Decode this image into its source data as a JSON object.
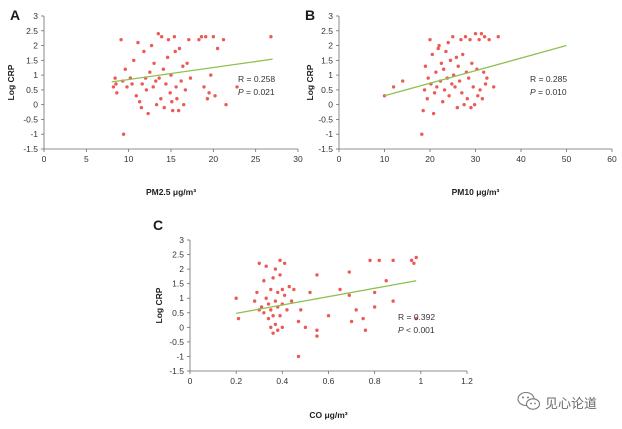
{
  "chart_data": [
    {
      "type": "scatter",
      "panel_label": "A",
      "xlabel": "PM2.5 μg/m³",
      "ylabel": "Log CRP",
      "xlim": [
        0,
        30
      ],
      "ylim": [
        -1.5,
        3
      ],
      "xticks": [
        0,
        5,
        10,
        15,
        20,
        25,
        30
      ],
      "yticks": [
        3,
        2.5,
        2,
        1.5,
        1,
        0.5,
        0,
        -0.5,
        -1,
        -1.5
      ],
      "annotation": {
        "r": "R = 0.258",
        "p": "P = 0.021"
      },
      "trendline": {
        "x": [
          8,
          27
        ],
        "y": [
          0.77,
          1.54
        ],
        "color": "#8ec04e"
      },
      "point_color": "#ec5a55",
      "points": [
        [
          8.2,
          0.6
        ],
        [
          8.4,
          0.9
        ],
        [
          8.5,
          0.7
        ],
        [
          8.6,
          0.4
        ],
        [
          9.1,
          2.2
        ],
        [
          9.3,
          0.8
        ],
        [
          9.4,
          -1.0
        ],
        [
          9.6,
          1.2
        ],
        [
          9.8,
          0.6
        ],
        [
          10.2,
          0.9
        ],
        [
          10.4,
          0.7
        ],
        [
          10.6,
          1.5
        ],
        [
          10.9,
          0.3
        ],
        [
          11.1,
          2.1
        ],
        [
          11.3,
          0.1
        ],
        [
          11.5,
          -0.1
        ],
        [
          11.6,
          0.7
        ],
        [
          11.8,
          1.8
        ],
        [
          12.0,
          0.9
        ],
        [
          12.1,
          0.5
        ],
        [
          12.3,
          -0.3
        ],
        [
          12.5,
          1.1
        ],
        [
          12.7,
          2.0
        ],
        [
          12.9,
          0.6
        ],
        [
          13.0,
          1.4
        ],
        [
          13.2,
          0.8
        ],
        [
          13.3,
          0.0
        ],
        [
          13.5,
          2.4
        ],
        [
          13.6,
          0.9
        ],
        [
          13.8,
          0.2
        ],
        [
          13.9,
          2.3
        ],
        [
          14.1,
          1.2
        ],
        [
          14.2,
          -0.1
        ],
        [
          14.4,
          0.7
        ],
        [
          14.6,
          1.6
        ],
        [
          14.7,
          2.2
        ],
        [
          14.9,
          0.4
        ],
        [
          15.0,
          1.0
        ],
        [
          15.1,
          0.1
        ],
        [
          15.2,
          -0.2
        ],
        [
          15.4,
          2.3
        ],
        [
          15.5,
          1.8
        ],
        [
          15.6,
          0.6
        ],
        [
          15.7,
          0.2
        ],
        [
          15.9,
          -0.2
        ],
        [
          16.0,
          1.9
        ],
        [
          16.2,
          0.8
        ],
        [
          16.4,
          1.3
        ],
        [
          16.5,
          0.0
        ],
        [
          16.7,
          0.5
        ],
        [
          16.9,
          1.4
        ],
        [
          17.1,
          2.2
        ],
        [
          17.3,
          0.9
        ],
        [
          18.3,
          2.2
        ],
        [
          18.6,
          2.3
        ],
        [
          18.9,
          0.6
        ],
        [
          19.1,
          2.3
        ],
        [
          19.3,
          0.2
        ],
        [
          19.5,
          0.4
        ],
        [
          19.7,
          1.0
        ],
        [
          20.0,
          2.3
        ],
        [
          20.2,
          0.3
        ],
        [
          20.5,
          1.9
        ],
        [
          21.2,
          2.2
        ],
        [
          21.5,
          0.0
        ],
        [
          22.8,
          0.6
        ],
        [
          26.8,
          2.3
        ]
      ]
    },
    {
      "type": "scatter",
      "panel_label": "B",
      "xlabel": "PM10 μg/m³",
      "ylabel": "Log CRP",
      "xlim": [
        0,
        60
      ],
      "ylim": [
        -1.5,
        3
      ],
      "xticks": [
        0,
        10,
        20,
        30,
        40,
        50,
        60
      ],
      "yticks": [
        3,
        2.5,
        2,
        1.5,
        1,
        0.5,
        0,
        -0.5,
        -1,
        -1.5
      ],
      "annotation": {
        "r": "R = 0.285",
        "p": "P = 0.010"
      },
      "trendline": {
        "x": [
          10,
          50
        ],
        "y": [
          0.3,
          2.0
        ],
        "color": "#8ec04e"
      },
      "point_color": "#ec5a55",
      "points": [
        [
          10.0,
          0.3
        ],
        [
          12.0,
          0.6
        ],
        [
          14.0,
          0.8
        ],
        [
          18.2,
          -1.0
        ],
        [
          18.5,
          -0.2
        ],
        [
          18.8,
          0.5
        ],
        [
          19.0,
          1.3
        ],
        [
          19.4,
          0.2
        ],
        [
          19.6,
          0.9
        ],
        [
          20.0,
          2.2
        ],
        [
          20.2,
          0.7
        ],
        [
          20.5,
          1.7
        ],
        [
          20.8,
          -0.3
        ],
        [
          21.0,
          0.4
        ],
        [
          21.3,
          1.1
        ],
        [
          21.5,
          0.6
        ],
        [
          21.8,
          1.9
        ],
        [
          22.0,
          2.0
        ],
        [
          22.3,
          0.8
        ],
        [
          22.5,
          1.4
        ],
        [
          22.8,
          0.1
        ],
        [
          23.0,
          1.2
        ],
        [
          23.2,
          0.5
        ],
        [
          23.5,
          1.8
        ],
        [
          23.8,
          0.9
        ],
        [
          24.0,
          2.1
        ],
        [
          24.2,
          0.3
        ],
        [
          24.5,
          1.5
        ],
        [
          24.8,
          0.7
        ],
        [
          25.0,
          2.3
        ],
        [
          25.2,
          1.0
        ],
        [
          25.5,
          0.6
        ],
        [
          25.8,
          1.6
        ],
        [
          26.0,
          -0.1
        ],
        [
          26.2,
          1.3
        ],
        [
          26.5,
          0.8
        ],
        [
          26.8,
          2.2
        ],
        [
          27.0,
          0.4
        ],
        [
          27.2,
          1.7
        ],
        [
          27.5,
          0.0
        ],
        [
          27.8,
          2.3
        ],
        [
          28.0,
          1.1
        ],
        [
          28.2,
          0.2
        ],
        [
          28.5,
          0.9
        ],
        [
          28.8,
          2.2
        ],
        [
          29.0,
          -0.1
        ],
        [
          29.2,
          1.4
        ],
        [
          29.5,
          0.6
        ],
        [
          29.8,
          0.0
        ],
        [
          30.0,
          2.4
        ],
        [
          30.3,
          1.2
        ],
        [
          30.5,
          0.3
        ],
        [
          30.8,
          2.2
        ],
        [
          31.0,
          0.5
        ],
        [
          31.3,
          2.4
        ],
        [
          31.5,
          0.2
        ],
        [
          31.8,
          1.1
        ],
        [
          32.0,
          2.3
        ],
        [
          32.2,
          0.7
        ],
        [
          32.5,
          0.9
        ],
        [
          33.0,
          2.2
        ],
        [
          34.0,
          0.6
        ],
        [
          35.0,
          2.3
        ]
      ]
    },
    {
      "type": "scatter",
      "panel_label": "C",
      "xlabel": "CO μg/m³",
      "ylabel": "Log CRP",
      "xlim": [
        0,
        1.2
      ],
      "ylim": [
        -1.5,
        3
      ],
      "xticks": [
        0,
        0.2,
        0.4,
        0.6,
        0.8,
        1,
        1.2
      ],
      "yticks": [
        3,
        2.5,
        2,
        1.5,
        1,
        0.5,
        0,
        -0.5,
        -1,
        -1.5
      ],
      "annotation": {
        "r": "R = 0.392",
        "p": "P < 0.001"
      },
      "trendline": {
        "x": [
          0.2,
          0.98
        ],
        "y": [
          0.48,
          1.6
        ],
        "color": "#8ec04e"
      },
      "point_color": "#ec5a55",
      "points": [
        [
          0.2,
          1.0
        ],
        [
          0.21,
          0.3
        ],
        [
          0.28,
          0.9
        ],
        [
          0.29,
          1.2
        ],
        [
          0.3,
          2.2
        ],
        [
          0.3,
          0.6
        ],
        [
          0.31,
          0.7
        ],
        [
          0.32,
          1.6
        ],
        [
          0.32,
          0.5
        ],
        [
          0.33,
          1.0
        ],
        [
          0.33,
          2.1
        ],
        [
          0.34,
          0.8
        ],
        [
          0.34,
          0.3
        ],
        [
          0.35,
          1.3
        ],
        [
          0.35,
          0.6
        ],
        [
          0.35,
          0.0
        ],
        [
          0.36,
          1.7
        ],
        [
          0.36,
          0.4
        ],
        [
          0.36,
          -0.2
        ],
        [
          0.37,
          2.0
        ],
        [
          0.37,
          0.9
        ],
        [
          0.37,
          0.1
        ],
        [
          0.38,
          1.2
        ],
        [
          0.38,
          0.7
        ],
        [
          0.38,
          -0.1
        ],
        [
          0.39,
          2.3
        ],
        [
          0.39,
          1.8
        ],
        [
          0.39,
          0.4
        ],
        [
          0.4,
          1.3
        ],
        [
          0.4,
          0.8
        ],
        [
          0.4,
          0.0
        ],
        [
          0.41,
          2.2
        ],
        [
          0.41,
          1.1
        ],
        [
          0.42,
          0.6
        ],
        [
          0.43,
          1.4
        ],
        [
          0.44,
          0.9
        ],
        [
          0.45,
          1.3
        ],
        [
          0.47,
          -1.0
        ],
        [
          0.47,
          0.2
        ],
        [
          0.48,
          0.6
        ],
        [
          0.5,
          0.0
        ],
        [
          0.52,
          1.2
        ],
        [
          0.55,
          1.8
        ],
        [
          0.55,
          -0.1
        ],
        [
          0.55,
          -0.3
        ],
        [
          0.6,
          0.4
        ],
        [
          0.65,
          1.3
        ],
        [
          0.69,
          1.9
        ],
        [
          0.69,
          1.1
        ],
        [
          0.7,
          0.2
        ],
        [
          0.72,
          0.6
        ],
        [
          0.75,
          0.3
        ],
        [
          0.76,
          -0.1
        ],
        [
          0.78,
          2.3
        ],
        [
          0.8,
          1.2
        ],
        [
          0.8,
          0.7
        ],
        [
          0.82,
          2.3
        ],
        [
          0.85,
          1.6
        ],
        [
          0.88,
          2.3
        ],
        [
          0.88,
          0.9
        ],
        [
          0.96,
          2.3
        ],
        [
          0.97,
          2.2
        ],
        [
          0.98,
          2.4
        ],
        [
          0.98,
          0.3
        ]
      ]
    }
  ],
  "watermark": {
    "text": "见心论道",
    "icon": "wechat-icon"
  }
}
